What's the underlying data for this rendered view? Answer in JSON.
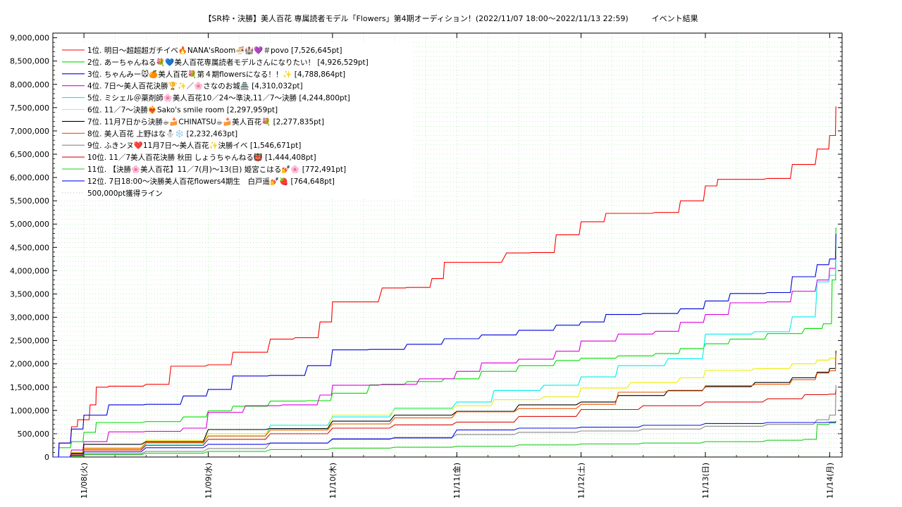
{
  "title": "【SR枠・決勝】美人百花 専属読者モデル「Flowers」第4期オーディション！(2022/11/07 18:00〜2022/11/13 22:59)　　　イベント結果",
  "chart_data": {
    "type": "line",
    "title": "【SR枠・決勝】美人百花 専属読者モデル「Flowers」第4期オーディション！(2022/11/07 18:00〜2022/11/13 22:59)　　　イベント結果",
    "xlabel": "",
    "ylabel": "",
    "x_unit": "day",
    "x_range": [
      0,
      6.25
    ],
    "xlim": [
      -0.25,
      6.1
    ],
    "ylim": [
      0,
      9100000
    ],
    "y_ticks": [
      0,
      500000,
      1000000,
      1500000,
      2000000,
      2500000,
      3000000,
      3500000,
      4000000,
      4500000,
      5000000,
      5500000,
      6000000,
      6500000,
      7000000,
      7500000,
      8000000,
      8500000,
      9000000
    ],
    "y_tick_labels": [
      "0",
      "500,000",
      "1,000,000",
      "1,500,000",
      "2,000,000",
      "2,500,000",
      "3,000,000",
      "3,500,000",
      "4,000,000",
      "4,500,000",
      "5,000,000",
      "5,500,000",
      "6,000,000",
      "6,500,000",
      "7,000,000",
      "7,500,000",
      "8,000,000",
      "8,500,000",
      "9,000,000"
    ],
    "x_ticks": [
      0,
      1,
      2,
      3,
      4,
      5,
      6
    ],
    "x_tick_labels": [
      "11/08(火)",
      "11/09(水)",
      "11/10(木)",
      "11/11(金)",
      "11/12(土)",
      "11/13(日)",
      "11/14(月)"
    ],
    "grid": true,
    "legend_position": "top-left",
    "series": [
      {
        "name": "1位. 明日〜超超超ガチイベ🔥NANA'sRoom🍜🏰💜＃povo [7,526,645pt]",
        "color": "#ff0000",
        "x": [
          -0.25,
          -0.2,
          -0.1,
          -0.05,
          0.05,
          0.1,
          0.2,
          0.5,
          0.7,
          1.0,
          1.2,
          1.5,
          1.7,
          1.9,
          2.0,
          2.4,
          2.6,
          2.8,
          2.9,
          3.4,
          3.6,
          3.8,
          4.0,
          4.2,
          4.6,
          4.8,
          5.0,
          5.1,
          5.5,
          5.7,
          5.9,
          6.0,
          6.05
        ],
        "y": [
          0,
          300000,
          650000,
          800000,
          1120000,
          1500000,
          1520000,
          1560000,
          1950000,
          1980000,
          2250000,
          2530000,
          2560000,
          2900000,
          3330000,
          3630000,
          3640000,
          3830000,
          4180000,
          4380000,
          4390000,
          4770000,
          5050000,
          5230000,
          5250000,
          5500000,
          5820000,
          5960000,
          5980000,
          6280000,
          6610000,
          6900000,
          7526645
        ]
      },
      {
        "name": "2位. あーちゃんねる💐💙美人百花専属読者モデルさんになりたい！ [4,926,529pt]",
        "color": "#00dd00",
        "x": [
          -0.25,
          -0.2,
          -0.1,
          0.0,
          0.1,
          0.5,
          0.8,
          1.0,
          1.2,
          1.5,
          1.8,
          2.0,
          2.3,
          2.6,
          2.9,
          3.2,
          3.5,
          3.8,
          4.0,
          4.3,
          4.6,
          4.8,
          5.0,
          5.2,
          5.5,
          5.8,
          5.95,
          6.02,
          6.05
        ],
        "y": [
          0,
          200000,
          330000,
          530000,
          740000,
          760000,
          860000,
          990000,
          1090000,
          1200000,
          1210000,
          1370000,
          1550000,
          1620000,
          1680000,
          1840000,
          1960000,
          2070000,
          2120000,
          2170000,
          2220000,
          2330000,
          2430000,
          2530000,
          2650000,
          2760000,
          2860000,
          3800000,
          4926529
        ]
      },
      {
        "name": "3位. ちゃんみー🐭🍊美人百花💐第４期flowersになる！！✨ [4,788,864pt]",
        "color": "#0000dd",
        "x": [
          -0.25,
          -0.2,
          -0.1,
          0.0,
          0.2,
          0.5,
          0.8,
          1.0,
          1.2,
          1.5,
          1.8,
          2.0,
          2.3,
          2.6,
          2.9,
          3.2,
          3.5,
          3.8,
          4.0,
          4.2,
          4.5,
          4.8,
          5.0,
          5.2,
          5.5,
          5.7,
          5.9,
          6.0,
          6.05
        ],
        "y": [
          0,
          300000,
          600000,
          900000,
          1120000,
          1130000,
          1310000,
          1450000,
          1740000,
          1750000,
          1960000,
          2300000,
          2310000,
          2420000,
          2540000,
          2620000,
          2720000,
          2830000,
          2900000,
          3060000,
          3080000,
          3180000,
          3350000,
          3510000,
          3530000,
          3870000,
          4130000,
          4250000,
          4788864
        ]
      },
      {
        "name": "4位. 7日〜美人百花決勝🏆✨／🌸さなのお城🏯 [4,310,032pt]",
        "color": "#dd00dd",
        "x": [
          -0.25,
          -0.1,
          0.0,
          0.2,
          0.5,
          0.8,
          1.0,
          1.3,
          1.6,
          1.9,
          2.0,
          2.4,
          2.7,
          3.0,
          3.2,
          3.5,
          3.8,
          4.0,
          4.3,
          4.6,
          4.8,
          5.0,
          5.2,
          5.5,
          5.7,
          5.9,
          6.0,
          6.05
        ],
        "y": [
          0,
          150000,
          330000,
          540000,
          550000,
          620000,
          960000,
          1100000,
          1120000,
          1330000,
          1540000,
          1560000,
          1680000,
          1840000,
          2020000,
          2100000,
          2270000,
          2490000,
          2640000,
          2700000,
          2890000,
          3060000,
          3310000,
          3330000,
          3560000,
          3800000,
          4050000,
          4310032
        ]
      },
      {
        "name": "5位. ミシェル＠薬剤師🌸美人百花10／24〜準決,11／7〜決勝 [4,244,800pt]",
        "color": "#00eeee",
        "x": [
          -0.25,
          -0.1,
          0.0,
          0.5,
          1.0,
          1.5,
          2.0,
          2.5,
          3.0,
          3.3,
          3.7,
          4.0,
          4.3,
          4.7,
          5.0,
          5.4,
          5.7,
          5.9,
          6.0,
          6.05
        ],
        "y": [
          0,
          80000,
          150000,
          280000,
          450000,
          680000,
          860000,
          1050000,
          1180000,
          1430000,
          1540000,
          1720000,
          1960000,
          2110000,
          2640000,
          2690000,
          3010000,
          3760000,
          3900000,
          4244800
        ]
      },
      {
        "name": "6位. 11／7〜決勝❤️‍🔥Sako's smile room [2,297,959pt]",
        "color": "#eeee00",
        "x": [
          -0.25,
          -0.1,
          0.0,
          0.5,
          1.0,
          1.5,
          2.0,
          2.5,
          3.0,
          3.3,
          3.7,
          4.0,
          4.4,
          4.8,
          5.0,
          5.4,
          5.7,
          5.9,
          6.0,
          6.05
        ],
        "y": [
          0,
          100000,
          200000,
          360000,
          500000,
          580000,
          900000,
          1030000,
          1100000,
          1230000,
          1290000,
          1480000,
          1600000,
          1700000,
          1860000,
          1900000,
          2000000,
          2080000,
          2120000,
          2297959
        ]
      },
      {
        "name": "7位. 11月7日から決勝☕🍰CHINATSU☕🍰美人百花💐 [2,277,835pt]",
        "color": "#000000",
        "x": [
          -0.25,
          -0.1,
          0.0,
          0.5,
          1.0,
          1.5,
          2.0,
          2.5,
          3.0,
          3.5,
          4.0,
          4.3,
          4.7,
          5.0,
          5.4,
          5.7,
          5.9,
          6.0,
          6.05
        ],
        "y": [
          0,
          80000,
          270000,
          330000,
          590000,
          610000,
          770000,
          900000,
          980000,
          1120000,
          1180000,
          1320000,
          1430000,
          1510000,
          1600000,
          1700000,
          1820000,
          1900000,
          2277835
        ]
      },
      {
        "name": "8位. 美人百花 上野はな⛄❄️ [2,232,463pt]",
        "color": "#ee5500",
        "x": [
          -0.25,
          -0.1,
          0.0,
          0.5,
          1.0,
          1.5,
          2.0,
          2.5,
          3.0,
          3.5,
          4.0,
          4.3,
          4.7,
          5.0,
          5.4,
          5.7,
          5.9,
          6.0,
          6.05
        ],
        "y": [
          0,
          60000,
          180000,
          310000,
          450000,
          580000,
          710000,
          840000,
          970000,
          1040000,
          1130000,
          1390000,
          1420000,
          1530000,
          1560000,
          1660000,
          1800000,
          1850000,
          2232463
        ]
      },
      {
        "name": "9位. ふきンヌ❤️11月7日〜美人百花✨決勝イベ [1,546,671pt]",
        "color": "#888888",
        "x": [
          -0.25,
          -0.1,
          0.0,
          0.5,
          1.0,
          1.5,
          2.0,
          2.5,
          3.0,
          3.5,
          4.0,
          4.5,
          5.0,
          5.5,
          5.9,
          6.0,
          6.05
        ],
        "y": [
          0,
          40000,
          70000,
          120000,
          180000,
          300000,
          380000,
          420000,
          480000,
          530000,
          560000,
          600000,
          660000,
          700000,
          800000,
          900000,
          1546671
        ]
      },
      {
        "name": "10位. 11／7美人百花決勝 秋田 しょうちゃんねる👹 [1,444,408pt]",
        "color": "#dd1111",
        "x": [
          -0.25,
          -0.1,
          0.0,
          0.5,
          1.0,
          1.5,
          2.0,
          2.5,
          3.0,
          3.5,
          4.0,
          4.5,
          5.0,
          5.5,
          5.8,
          6.0,
          6.05
        ],
        "y": [
          0,
          70000,
          150000,
          250000,
          380000,
          500000,
          620000,
          690000,
          750000,
          870000,
          1020000,
          1100000,
          1180000,
          1250000,
          1340000,
          1350000,
          1444408
        ]
      },
      {
        "name": "11位. 【決勝🌸美人百花】11／7(月)〜13(日) 姫宮こはる💅🌸 [772,491pt]",
        "color": "#22cc22",
        "x": [
          -0.25,
          -0.1,
          0.0,
          0.5,
          1.0,
          1.5,
          2.0,
          2.5,
          3.0,
          3.5,
          4.0,
          4.5,
          5.0,
          5.5,
          5.8,
          5.9,
          6.0,
          6.05
        ],
        "y": [
          0,
          20000,
          50000,
          80000,
          120000,
          160000,
          190000,
          210000,
          230000,
          260000,
          280000,
          300000,
          330000,
          360000,
          380000,
          700000,
          730000,
          772491
        ]
      },
      {
        "name": "12位. 7日18:00〜決勝美人百花flowers4期生　白戸遥💅🍓 [764,648pt]",
        "color": "#1111ee",
        "x": [
          -0.25,
          -0.1,
          0.0,
          0.5,
          1.0,
          1.5,
          2.0,
          2.5,
          3.0,
          3.5,
          4.0,
          4.5,
          5.0,
          5.5,
          6.0,
          6.05
        ],
        "y": [
          0,
          40000,
          110000,
          200000,
          270000,
          300000,
          390000,
          410000,
          580000,
          620000,
          640000,
          680000,
          720000,
          740000,
          750000,
          764648
        ]
      },
      {
        "name": "500,000pt獲得ライン",
        "color": "#aaaaaa",
        "style": "dotted",
        "x": [
          -0.25,
          6.1
        ],
        "y": [
          500000,
          500000
        ]
      }
    ]
  }
}
